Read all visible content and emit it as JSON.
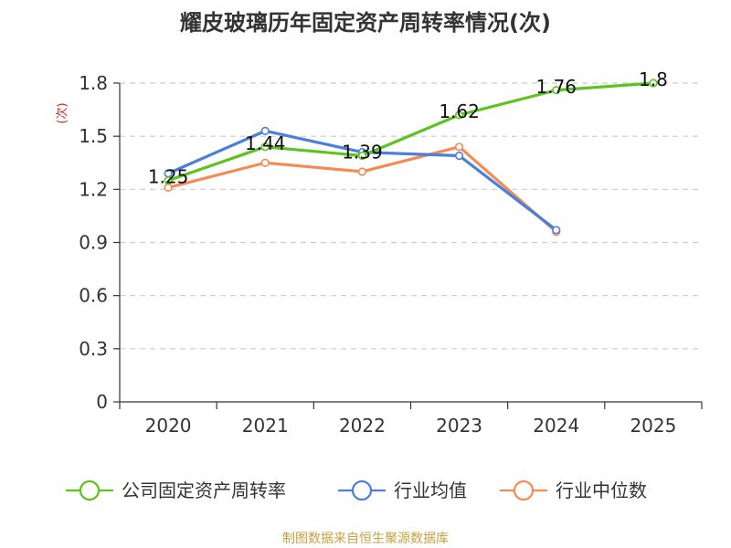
{
  "chart_data": {
    "type": "line",
    "title": "耀皮玻璃历年固定资产周转率情况(次)",
    "ylabel": "(次)",
    "xlabel": "",
    "categories": [
      "2020",
      "2021",
      "2022",
      "2023",
      "2024",
      "2025"
    ],
    "ylim": [
      0,
      1.8
    ],
    "yticks": [
      0,
      0.3,
      0.6,
      0.9,
      1.2,
      1.5,
      1.8
    ],
    "ytick_labels": [
      "0",
      "0.3",
      "0.6",
      "0.9",
      "1.2",
      "1.5",
      "1.8"
    ],
    "grid": true,
    "legend_position": "bottom",
    "series": [
      {
        "name": "公司固定资产周转率",
        "color": "#5cc31f",
        "values": [
          1.25,
          1.44,
          1.39,
          1.62,
          1.76,
          1.8
        ],
        "labels": [
          "1.25",
          "1.44",
          "1.39",
          "1.62",
          "1.76",
          "1.8"
        ]
      },
      {
        "name": "行业均值",
        "color": "#4a7fdb",
        "values": [
          1.29,
          1.53,
          1.41,
          1.39,
          0.97,
          null
        ]
      },
      {
        "name": "行业中位数",
        "color": "#f58b54",
        "values": [
          1.21,
          1.35,
          1.3,
          1.44,
          0.96,
          null
        ]
      }
    ]
  },
  "source_text": "制图数据来自恒生聚源数据库",
  "colors": {
    "ylabel": "#d62728",
    "source": "#c8a040"
  }
}
